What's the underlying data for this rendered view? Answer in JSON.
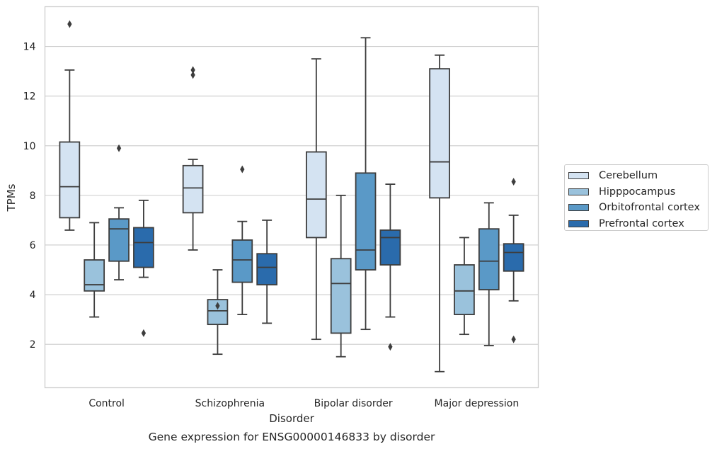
{
  "chart_data": {
    "type": "box",
    "caption": "Gene expression for ENSG00000146833 by disorder",
    "xlabel": "Disorder",
    "ylabel": "TPMs",
    "categories": [
      "Control",
      "Schizophrenia",
      "Bipolar disorder",
      "Major depression"
    ],
    "yticks": [
      "2",
      "4",
      "6",
      "8",
      "10",
      "12",
      "14"
    ],
    "ylim": [
      0.25,
      15.6
    ],
    "grid": "horizontal",
    "legend_position": "right",
    "series": [
      {
        "name": "Cerebellum",
        "color": "#d4e3f2",
        "boxes": [
          {
            "whislo": 6.6,
            "q1": 7.1,
            "med": 8.35,
            "q3": 10.15,
            "whishi": 13.05,
            "fliers": [
              14.9
            ]
          },
          {
            "whislo": 5.8,
            "q1": 7.3,
            "med": 8.3,
            "q3": 9.2,
            "whishi": 9.45,
            "fliers": [
              12.85,
              13.05
            ]
          },
          {
            "whislo": 2.2,
            "q1": 6.3,
            "med": 7.85,
            "q3": 9.75,
            "whishi": 13.5,
            "fliers": []
          },
          {
            "whislo": 0.9,
            "q1": 7.9,
            "med": 9.35,
            "q3": 13.1,
            "whishi": 13.65,
            "fliers": []
          }
        ]
      },
      {
        "name": "Hipppocampus",
        "color": "#9ac2dc",
        "boxes": [
          {
            "whislo": 3.1,
            "q1": 4.15,
            "med": 4.4,
            "q3": 5.4,
            "whishi": 6.9,
            "fliers": []
          },
          {
            "whislo": 1.6,
            "q1": 2.8,
            "med": 3.35,
            "q3": 3.8,
            "whishi": 5.0,
            "fliers": [
              3.55
            ]
          },
          {
            "whislo": 1.5,
            "q1": 2.45,
            "med": 4.45,
            "q3": 5.45,
            "whishi": 8.0,
            "fliers": []
          },
          {
            "whislo": 2.4,
            "q1": 3.2,
            "med": 4.15,
            "q3": 5.2,
            "whishi": 6.3,
            "fliers": []
          }
        ]
      },
      {
        "name": "Orbitofrontal cortex",
        "color": "#5a99c7",
        "boxes": [
          {
            "whislo": 4.6,
            "q1": 5.35,
            "med": 6.65,
            "q3": 7.05,
            "whishi": 7.5,
            "fliers": [
              9.9
            ]
          },
          {
            "whislo": 3.2,
            "q1": 4.5,
            "med": 5.4,
            "q3": 6.2,
            "whishi": 6.95,
            "fliers": [
              9.05
            ]
          },
          {
            "whislo": 2.6,
            "q1": 5.0,
            "med": 5.8,
            "q3": 8.9,
            "whishi": 14.35,
            "fliers": []
          },
          {
            "whislo": 1.95,
            "q1": 4.2,
            "med": 5.35,
            "q3": 6.65,
            "whishi": 7.7,
            "fliers": []
          }
        ]
      },
      {
        "name": "Prefrontal cortex",
        "color": "#2a6bac",
        "boxes": [
          {
            "whislo": 4.7,
            "q1": 5.1,
            "med": 6.1,
            "q3": 6.7,
            "whishi": 7.8,
            "fliers": [
              2.45
            ]
          },
          {
            "whislo": 2.85,
            "q1": 4.4,
            "med": 5.1,
            "q3": 5.65,
            "whishi": 7.0,
            "fliers": []
          },
          {
            "whislo": 3.1,
            "q1": 5.2,
            "med": 6.3,
            "q3": 6.6,
            "whishi": 8.45,
            "fliers": [
              1.9
            ]
          },
          {
            "whislo": 3.75,
            "q1": 4.95,
            "med": 5.7,
            "q3": 6.05,
            "whishi": 7.2,
            "fliers": [
              2.2,
              8.55
            ]
          }
        ]
      }
    ]
  }
}
